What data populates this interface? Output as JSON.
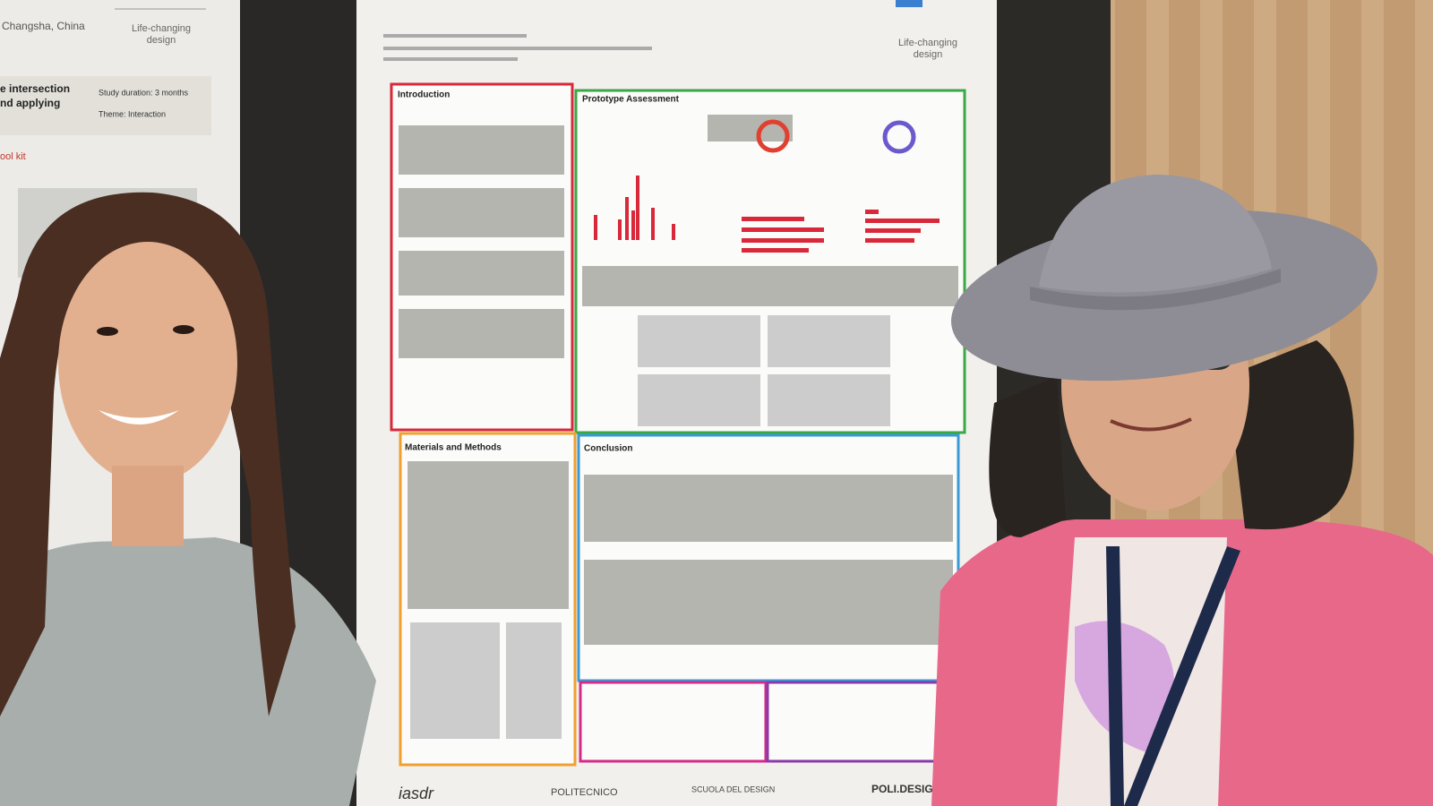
{
  "left_poster": {
    "location": "Changsha, China",
    "motto": [
      "Life-changing",
      "design"
    ],
    "heading": [
      "e intersection",
      "nd applying"
    ],
    "duration": "Study duration: 3 months",
    "theme": "Theme: Interaction",
    "section": "ool kit"
  },
  "poster": {
    "motto": [
      "Life-changing",
      "design"
    ],
    "sections": {
      "introduction": "Introduction",
      "assessment": "Prototype Assessment",
      "methods": "Materials and Methods",
      "conclusion": "Conclusion"
    },
    "footer": [
      "iasdr",
      "POLITECNICO",
      "SCUOLA DEL DESIGN",
      "POLI.DESIGN"
    ]
  }
}
